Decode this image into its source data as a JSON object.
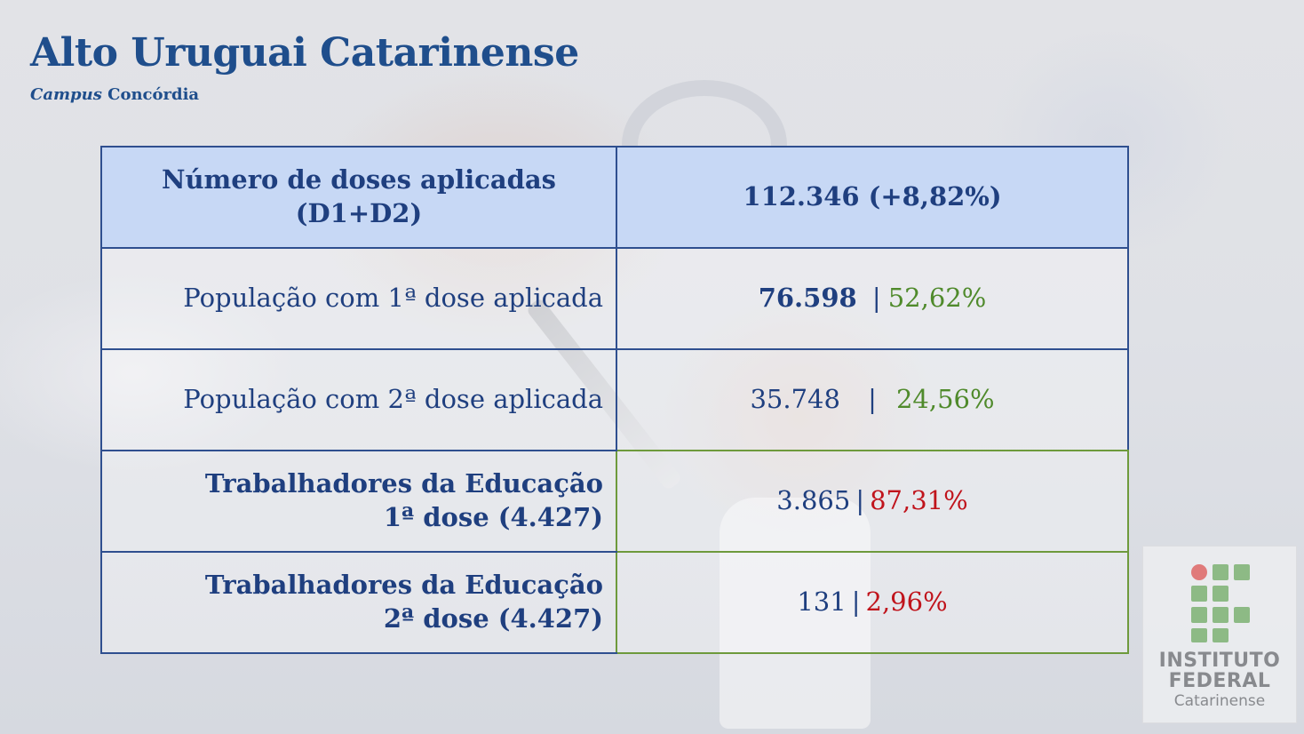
{
  "header": {
    "title": "Alto Uruguai Catarinense",
    "subtitle_italic": "Campus",
    "subtitle_rest": "Concórdia"
  },
  "table": {
    "rows": [
      {
        "label_line1": "Número de doses aplicadas",
        "label_line2": "(D1+D2)",
        "value": "112.346 (+8,82%)"
      },
      {
        "label": "População com 1ª dose aplicada",
        "count": "76.598",
        "sep": "|",
        "percent": "52,62%"
      },
      {
        "label": "População com 2ª dose aplicada",
        "count": "35.748",
        "sep": "|",
        "percent": "24,56%"
      },
      {
        "label_line1": "Trabalhadores da Educação",
        "label_line2": "1ª dose (4.427)",
        "count": "3.865",
        "sep": "|",
        "percent": "87,31%"
      },
      {
        "label_line1": "Trabalhadores da Educação",
        "label_line2": "2ª dose (4.427)",
        "count": "131",
        "sep": "|",
        "percent": "2,96%"
      }
    ]
  },
  "logo": {
    "line1": "INSTITUTO",
    "line2": "FEDERAL",
    "line3": "Catarinense",
    "colors": {
      "green": "#8dba85",
      "red_dot": "#e07a7a"
    }
  },
  "colors": {
    "title_blue": "#1f4e8c",
    "header_fill": "#c7d8f5",
    "percent_green": "#4f8a2b",
    "percent_red": "#c0141c"
  }
}
